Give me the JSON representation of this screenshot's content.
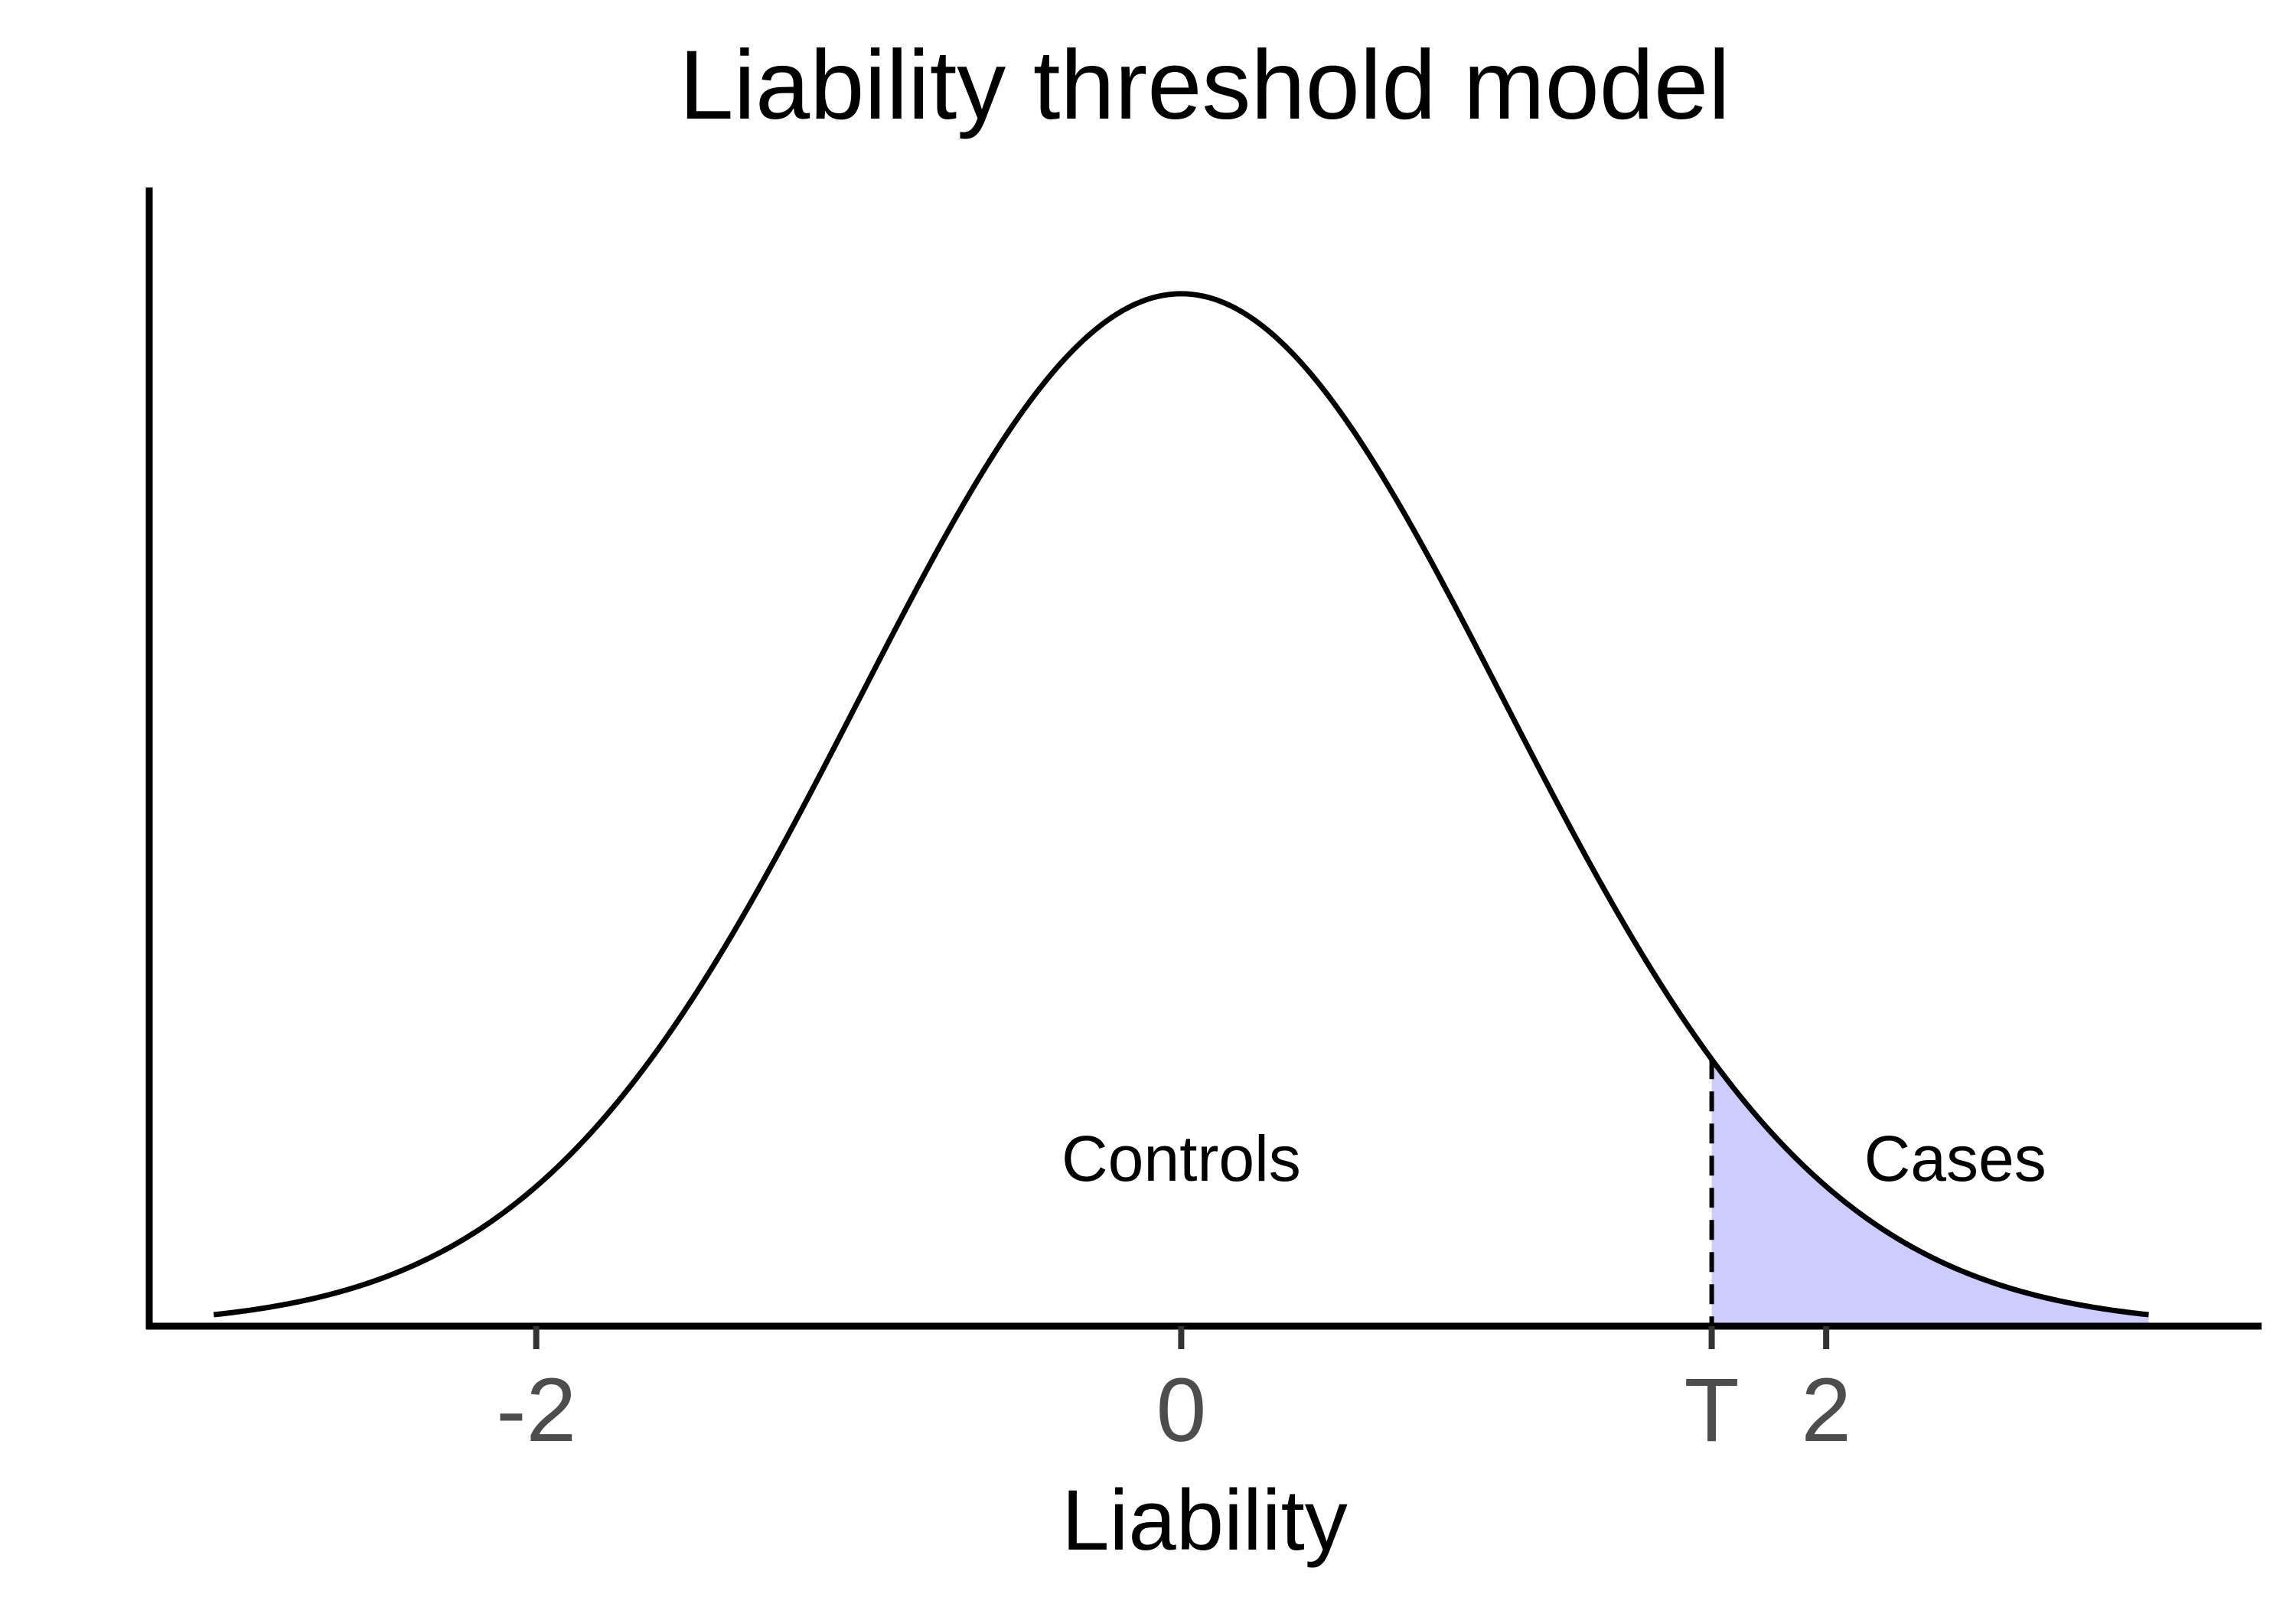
{
  "chart_data": {
    "type": "area",
    "title": "Liability threshold model",
    "xlabel": "Liability",
    "ylabel": "",
    "xlim": [
      -3.2,
      3.35
    ],
    "ylim": [
      0,
      0.44
    ],
    "distribution": {
      "kind": "normal",
      "mean": 0,
      "sd": 1,
      "x_range": [
        -3,
        3
      ]
    },
    "threshold": {
      "label": "T",
      "x": 1.645,
      "line_style": "dashed"
    },
    "shaded_region": {
      "from": 1.645,
      "to": 3,
      "color": "#ccccff"
    },
    "x_ticks": [
      {
        "value": -2,
        "label": "-2"
      },
      {
        "value": 0,
        "label": "0"
      },
      {
        "value": 1.645,
        "label": "T"
      },
      {
        "value": 2,
        "label": "2"
      }
    ],
    "annotations": [
      {
        "text": "Controls",
        "x": 0,
        "y": 0.065
      },
      {
        "text": "Cases",
        "x": 2.4,
        "y": 0.065
      }
    ],
    "grid": false,
    "legend": "none",
    "colors": {
      "curve": "#000000",
      "axis": "#000000",
      "tick_label": "#4d4d4d"
    }
  }
}
